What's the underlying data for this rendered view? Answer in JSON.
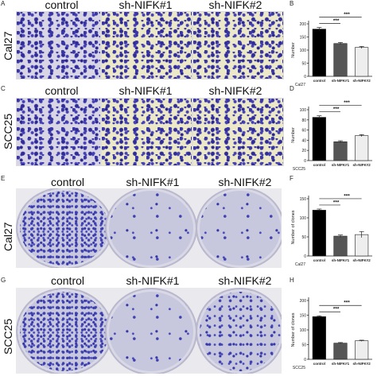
{
  "columns": [
    "control",
    "sh-NIFK#1",
    "sh-NIFK#2"
  ],
  "rows": [
    {
      "row_label": "Cal27",
      "left_letter": "A",
      "chart_letter": "B"
    },
    {
      "row_label": "SCC25",
      "left_letter": "C",
      "chart_letter": "D"
    },
    {
      "row_label": "Cal27",
      "left_letter": "E",
      "chart_letter": "F"
    },
    {
      "row_label": "SCC25",
      "left_letter": "G",
      "chart_letter": "H"
    }
  ],
  "chart_data": [
    {
      "type": "bar",
      "categories": [
        "control",
        "sh-NIFK#1",
        "sh-NIFK#2"
      ],
      "values": [
        180,
        125,
        110
      ],
      "errors": [
        6,
        4,
        4
      ],
      "ylabel": "Number",
      "ylim": [
        0,
        200
      ],
      "yticks": [
        0,
        50,
        100,
        150,
        200
      ],
      "xlabel": "Cal27",
      "colors": [
        "#000000",
        "#555555",
        "#eeeeee"
      ],
      "sig": [
        "***",
        "***"
      ]
    },
    {
      "type": "bar",
      "categories": [
        "control",
        "sh-NIFK#1",
        "sh-NIFK#2"
      ],
      "values": [
        85,
        37,
        49
      ],
      "errors": [
        3,
        2,
        2
      ],
      "ylabel": "Number",
      "ylim": [
        0,
        100
      ],
      "yticks": [
        0,
        20,
        40,
        60,
        80,
        100
      ],
      "xlabel": "SCC25",
      "colors": [
        "#000000",
        "#555555",
        "#eeeeee"
      ],
      "sig": [
        "***",
        "***"
      ]
    },
    {
      "type": "bar",
      "categories": [
        "control",
        "sh-NIFK#1",
        "sh-NIFK#2"
      ],
      "values": [
        120,
        52,
        56
      ],
      "errors": [
        3,
        3,
        8
      ],
      "ylabel": "Number of clones",
      "ylim": [
        0,
        150
      ],
      "yticks": [
        0,
        50,
        100,
        150
      ],
      "xlabel": "Cal27",
      "colors": [
        "#000000",
        "#555555",
        "#eeeeee"
      ],
      "sig": [
        "***",
        "***"
      ]
    },
    {
      "type": "bar",
      "categories": [
        "control",
        "sh-NIFK#1",
        "sh-NIFK#2"
      ],
      "values": [
        145,
        55,
        63
      ],
      "errors": [
        3,
        2,
        2
      ],
      "ylabel": "Number of clones",
      "ylim": [
        0,
        200
      ],
      "yticks": [
        0,
        50,
        100,
        150,
        200
      ],
      "xlabel": "SCC25",
      "colors": [
        "#000000",
        "#555555",
        "#eeeeee"
      ],
      "sig": [
        "***",
        "***"
      ]
    }
  ]
}
